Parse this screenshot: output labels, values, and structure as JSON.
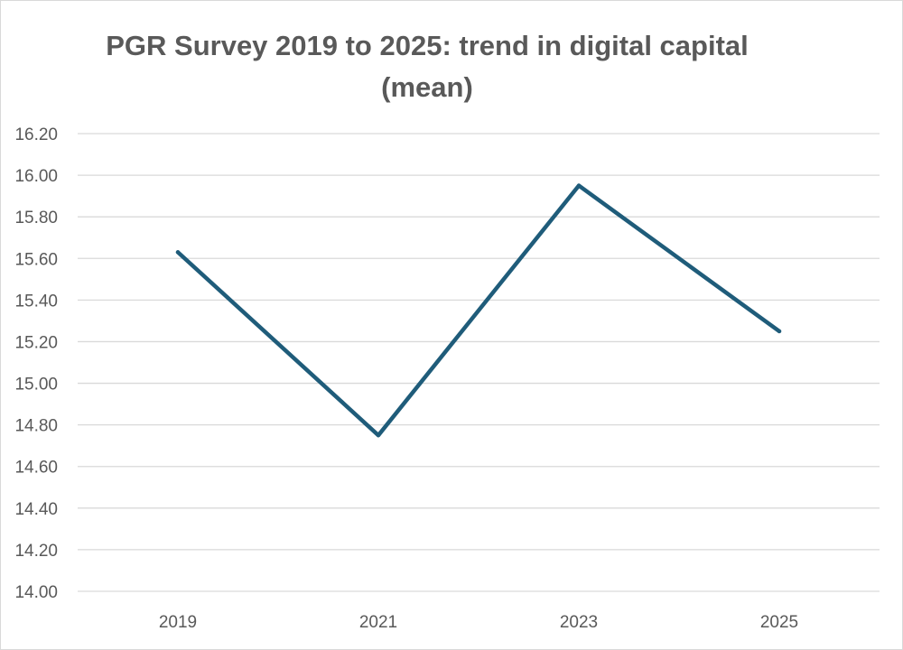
{
  "chart_data": {
    "type": "line",
    "title_lines": [
      "PGR Survey 2019 to 2025: trend in digital capital",
      "(mean)"
    ],
    "categories": [
      "2019",
      "2021",
      "2023",
      "2025"
    ],
    "series": [
      {
        "values": [
          15.63,
          14.75,
          15.95,
          15.25
        ]
      }
    ],
    "y_ticks": [
      "14.00",
      "14.20",
      "14.40",
      "14.60",
      "14.80",
      "15.00",
      "15.20",
      "15.40",
      "15.60",
      "15.80",
      "16.00",
      "16.20"
    ],
    "ylim": [
      14.0,
      16.2
    ],
    "grid": true,
    "legend": "none",
    "line_color": "#1f5c7a",
    "grid_color": "#d9d9d9",
    "text_color": "#595959"
  }
}
